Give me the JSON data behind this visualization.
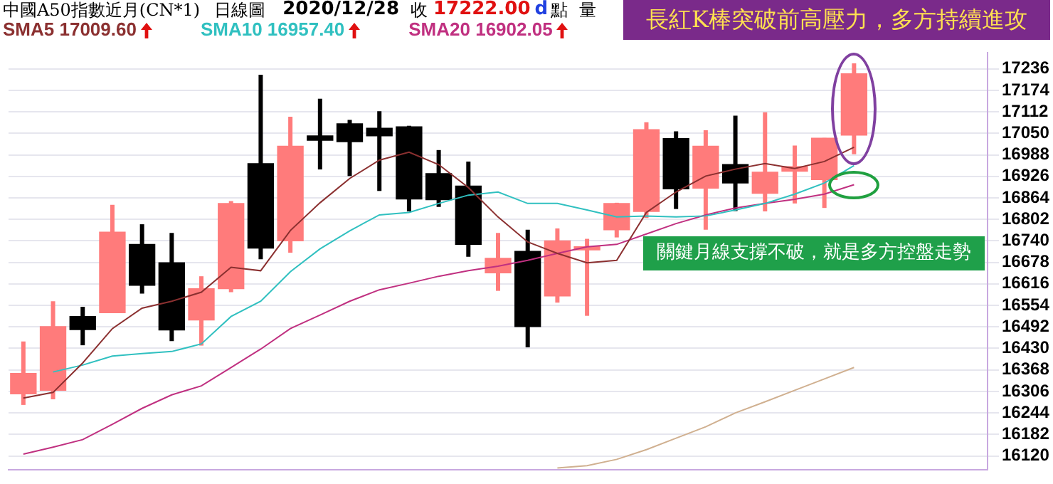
{
  "chart_data": {
    "type": "candlestick",
    "title": "中國A50指數近月(CN*1)",
    "subtitle": "日線圖",
    "annotations": [
      "2020/12/28",
      "收",
      "17222.00",
      "d",
      "點",
      "量",
      "長紅K棒突破前高壓力，多方持續進攻",
      "關鍵月線支撐不破，就是多方控盤走勢"
    ],
    "categories": [
      null,
      null,
      null,
      null,
      null,
      null,
      null,
      null,
      null,
      null,
      null,
      null,
      null,
      null,
      null,
      null,
      null,
      null,
      null,
      null,
      null,
      null,
      null,
      null,
      null,
      null,
      null,
      null,
      null,
      null,
      null,
      null,
      null
    ],
    "ohlc": [
      [
        16299,
        16450,
        16267,
        16358
      ],
      [
        16309,
        16566,
        16283,
        16493
      ],
      [
        16522,
        16550,
        16439,
        16484
      ],
      [
        16533,
        16844,
        16533,
        16765
      ],
      [
        16730,
        16788,
        16588,
        16612
      ],
      [
        16677,
        16763,
        16451,
        16483
      ],
      [
        16512,
        16638,
        16438,
        16602
      ],
      [
        16602,
        16855,
        16592,
        16848
      ],
      [
        16963,
        17219,
        16687,
        16719
      ],
      [
        16740,
        17098,
        16706,
        17013
      ],
      [
        17043,
        17150,
        16946,
        17030
      ],
      [
        17078,
        17089,
        16927,
        17026
      ],
      [
        17065,
        17114,
        16884,
        17043
      ],
      [
        17069,
        17072,
        16825,
        16861
      ],
      [
        16934,
        17002,
        16838,
        16859
      ],
      [
        16898,
        16969,
        16694,
        16730
      ],
      [
        16648,
        16763,
        16596,
        16690
      ],
      [
        16710,
        16772,
        16433,
        16493
      ],
      [
        16581,
        16776,
        16562,
        16740
      ],
      [
        16714,
        16746,
        16524,
        16723
      ],
      [
        16772,
        16850,
        16750,
        16848
      ],
      [
        16825,
        17082,
        16806,
        17061
      ],
      [
        17035,
        17056,
        16832,
        16890
      ],
      [
        16892,
        17059,
        16772,
        17013
      ],
      [
        16960,
        17101,
        16826,
        16907
      ],
      [
        16877,
        17111,
        16825,
        16938
      ],
      [
        16941,
        17015,
        16848,
        16954
      ],
      [
        16917,
        17037,
        16835,
        17036
      ],
      [
        17045,
        17252,
        16990,
        17222
      ],
      null,
      null,
      null,
      null
    ],
    "colors": [
      "#ff7b7b",
      "#ff7b7b",
      "#000000",
      "#ff7b7b",
      "#000000",
      "#000000",
      "#ff7b7b",
      "#ff7b7b",
      "#000000",
      "#ff7b7b",
      "#000000",
      "#000000",
      "#000000",
      "#000000",
      "#000000",
      "#000000",
      "#ff7b7b",
      "#000000",
      "#ff7b7b",
      "#ff7b7b",
      "#ff7b7b",
      "#ff7b7b",
      "#000000",
      "#ff7b7b",
      "#000000",
      "#ff7b7b",
      "#ff7b7b",
      "#ff7b7b",
      "#ff7b7b",
      null,
      null,
      null,
      null
    ],
    "series": [
      {
        "name": "SMA5 17009.60",
        "type": "line",
        "color": "#8b3030",
        "values": [
          16287,
          16303,
          16388,
          16487,
          16546,
          16566,
          16592,
          16664,
          16654,
          16770,
          16850,
          16920,
          16973,
          16996,
          16960,
          16894,
          16809,
          16737,
          16704,
          16677,
          16684,
          16822,
          16881,
          16927,
          16947,
          16963,
          16949,
          16969,
          17010,
          null,
          null,
          null,
          null
        ]
      },
      {
        "name": "SMA10 16957.40",
        "type": "line",
        "color": "#30c0c0",
        "values": [
          null,
          16362,
          16382,
          16408,
          16415,
          16421,
          16443,
          16522,
          16566,
          16651,
          16717,
          16769,
          16815,
          16822,
          16848,
          16872,
          16881,
          16848,
          16848,
          16829,
          16809,
          16812,
          16809,
          16812,
          16829,
          16848,
          16875,
          16907,
          16957,
          null,
          null,
          null,
          null
        ]
      },
      {
        "name": "SMA20 16902.05",
        "type": "line",
        "color": "#c03080",
        "values": [
          16125,
          16145,
          16167,
          16211,
          16257,
          16296,
          16322,
          16375,
          16428,
          16487,
          16526,
          16566,
          16599,
          16618,
          16638,
          16654,
          16667,
          16684,
          16704,
          16723,
          16730,
          16760,
          16790,
          16815,
          16835,
          16848,
          16860,
          16875,
          16902,
          null,
          null,
          null,
          null
        ]
      },
      {
        "type": "line",
        "color": "#d0b090",
        "values": [
          null,
          null,
          null,
          null,
          null,
          null,
          null,
          null,
          null,
          null,
          null,
          null,
          null,
          null,
          null,
          null,
          null,
          null,
          16085,
          16092,
          16110,
          16138,
          16171,
          16204,
          16244,
          16276,
          16309,
          16342,
          16375,
          null,
          null,
          null,
          null
        ]
      }
    ],
    "ylim": [
      16080,
      17282
    ],
    "yticks": [
      16120,
      16182,
      16244,
      16306,
      16368,
      16430,
      16492,
      16554,
      16616,
      16678,
      16740,
      16802,
      16864,
      16926,
      16988,
      17050,
      17112,
      17174,
      17236
    ],
    "grid": "y",
    "legend": "top left",
    "tick_labels": "y",
    "marker": "none"
  }
}
